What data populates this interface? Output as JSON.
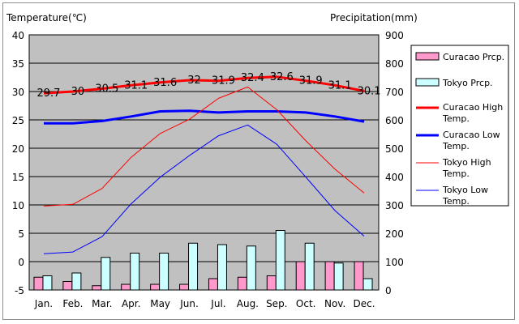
{
  "chart_data": {
    "type": "bar+line",
    "title": "",
    "left_axis_label": "Temperature(℃)",
    "right_axis_label": "Precipitation(mm)",
    "left_ylim": [
      -5,
      40
    ],
    "left_ticks": [
      "40",
      "35",
      "30",
      "25",
      "20",
      "15",
      "10",
      "5",
      "0",
      "-5"
    ],
    "right_ylim": [
      0,
      900
    ],
    "right_ticks": [
      "900",
      "800",
      "700",
      "600",
      "500",
      "400",
      "300",
      "200",
      "100",
      "0"
    ],
    "grid": true,
    "legend_position": "right",
    "categories": [
      "Jan.",
      "Feb.",
      "Mar.",
      "Apr.",
      "May",
      "Jun.",
      "Jul.",
      "Aug.",
      "Sep.",
      "Oct.",
      "Nov.",
      "Dec."
    ],
    "bar_series": [
      {
        "name": "Curacao Prcp.",
        "color": "#ff99cc",
        "values": [
          45,
          30,
          15,
          20,
          20,
          20,
          40,
          45,
          50,
          100,
          100,
          100
        ]
      },
      {
        "name": "Tokyo Prcp.",
        "color": "#ccffff",
        "values": [
          50,
          60,
          115,
          130,
          130,
          165,
          160,
          155,
          210,
          165,
          95,
          40
        ]
      }
    ],
    "line_series": [
      {
        "name": "Curacao High Temp.",
        "color": "#ff0000",
        "width": 3,
        "values": [
          29.7,
          30,
          30.5,
          31.1,
          31.6,
          32,
          31.9,
          32.4,
          32.6,
          31.9,
          31.1,
          30.1
        ]
      },
      {
        "name": "Curacao Low Temp.",
        "color": "#0000ff",
        "width": 3,
        "values": [
          24.4,
          24.4,
          24.8,
          25.6,
          26.5,
          26.6,
          26.3,
          26.5,
          26.5,
          26.3,
          25.6,
          24.7
        ]
      },
      {
        "name": "Tokyo High Temp.",
        "color": "#ff0000",
        "width": 1,
        "values": [
          9.8,
          10.1,
          12.9,
          18.4,
          22.6,
          25.1,
          28.8,
          30.8,
          26.8,
          21.3,
          16.3,
          12.1
        ]
      },
      {
        "name": "Tokyo Low Temp.",
        "color": "#0000ff",
        "width": 1,
        "values": [
          1.4,
          1.7,
          4.4,
          10.2,
          14.9,
          18.7,
          22.2,
          24.1,
          20.7,
          14.9,
          9.0,
          4.5
        ]
      }
    ],
    "data_labels": [
      "29.7",
      "30",
      "30.5",
      "31.1",
      "31.6",
      "32",
      "31.9",
      "32.4",
      "32.6",
      "31.9",
      "31.1",
      "30.1"
    ]
  }
}
